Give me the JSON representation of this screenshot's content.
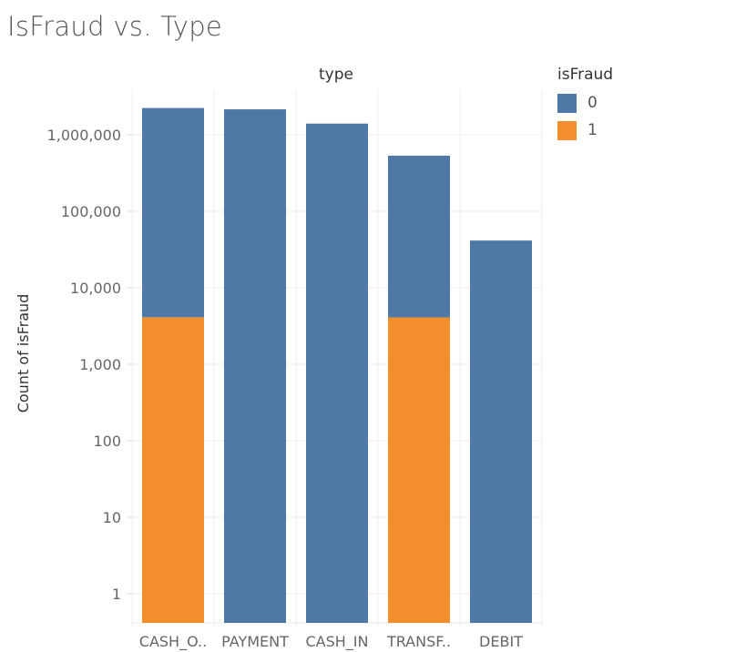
{
  "title": "IsFraud vs. Type",
  "chart_data": {
    "type": "bar",
    "stacked": true,
    "y_scale": "log",
    "column_header": "type",
    "ylabel": "Count of isFraud",
    "categories": [
      "CASH_O..",
      "PAYMENT",
      "CASH_IN",
      "TRANSF..",
      "DEBIT"
    ],
    "series": [
      {
        "name": "0",
        "color": "#4e79a7",
        "values": [
          2233384,
          2151495,
          1399284,
          528812,
          41432
        ]
      },
      {
        "name": "1",
        "color": "#f28e2b",
        "values": [
          4116,
          0,
          0,
          4097,
          0
        ]
      }
    ],
    "yticks": [
      1,
      10,
      100,
      1000,
      10000,
      100000,
      1000000
    ],
    "ytick_labels": [
      "1",
      "10",
      "100",
      "1,000",
      "10,000",
      "100,000",
      "1,000,000"
    ],
    "ylim": [
      0.5,
      3500000
    ],
    "grid": true,
    "legend": {
      "title": "isFraud",
      "position": "top-right"
    }
  }
}
